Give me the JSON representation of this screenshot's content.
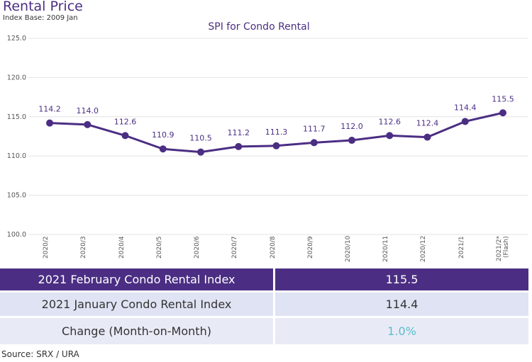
{
  "title": "Rental Price",
  "subtitle": "Index Base: 2009 Jan",
  "chart_data": {
    "type": "line",
    "title": "SPI for Condo Rental",
    "categories": [
      "2020/2",
      "2020/3",
      "2020/4",
      "2020/5",
      "2020/6",
      "2020/7",
      "2020/8",
      "2020/9",
      "2020/10",
      "2020/11",
      "2020/12",
      "2021/1",
      "2021/2* (Flash)"
    ],
    "values": [
      114.2,
      114.0,
      112.6,
      110.9,
      110.5,
      111.2,
      111.3,
      111.7,
      112.0,
      112.6,
      112.4,
      114.4,
      115.5
    ],
    "value_labels": [
      "114.2",
      "114.0",
      "112.6",
      "110.9",
      "110.5",
      "111.2",
      "111.3",
      "111.7",
      "112.0",
      "112.6",
      "112.4",
      "114.4",
      "115.5"
    ],
    "color": "#4b2e83",
    "ylim": [
      100,
      125
    ],
    "yticks": [
      {
        "value": 100,
        "label": "100.0"
      },
      {
        "value": 105,
        "label": "105.0"
      },
      {
        "value": 110,
        "label": "110.0"
      },
      {
        "value": 115,
        "label": "115.0"
      },
      {
        "value": 120,
        "label": "120.0"
      },
      {
        "value": 125,
        "label": "125.0"
      }
    ],
    "grid": true
  },
  "table": {
    "rows": [
      [
        "2021 February Condo Rental Index",
        "115.5"
      ],
      [
        "2021 January Condo Rental Index",
        "114.4"
      ],
      [
        "Change (Month-on-Month)",
        "1.0%"
      ]
    ]
  },
  "source": "Source: SRX / URA"
}
